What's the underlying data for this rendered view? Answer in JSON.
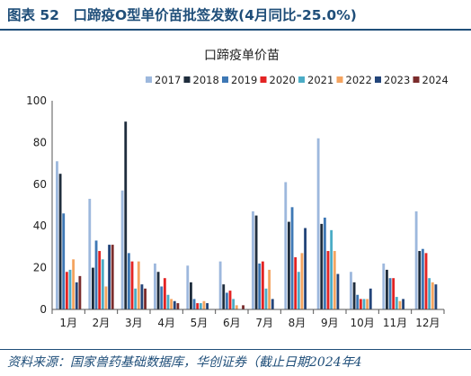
{
  "figure": {
    "title": "图表 52　口蹄疫O型单价苗批签发数(4月同比-25.0%)",
    "source": "资料来源：国家兽药基础数据库，华创证券（截止日期2024年4"
  },
  "chart_data": {
    "type": "bar",
    "title": "口蹄疫单价苗",
    "xlabel": "",
    "ylabel": "",
    "ylim": [
      0,
      100
    ],
    "yticks": [
      0,
      20,
      40,
      60,
      80,
      100
    ],
    "grid": false,
    "legend_position": "top",
    "categories": [
      "1月",
      "2月",
      "3月",
      "4月",
      "5月",
      "6月",
      "7月",
      "8月",
      "9月",
      "10月",
      "11月",
      "12月"
    ],
    "series": [
      {
        "name": "2017",
        "color": "#9db8dd",
        "values": [
          71,
          53,
          57,
          22,
          21,
          23,
          47,
          61,
          82,
          18,
          22,
          47
        ]
      },
      {
        "name": "2018",
        "color": "#1f2d3d",
        "values": [
          65,
          20,
          90,
          18,
          13,
          12,
          45,
          42,
          41,
          13,
          19,
          28
        ]
      },
      {
        "name": "2019",
        "color": "#3e78b5",
        "values": [
          46,
          33,
          27,
          11,
          5,
          8,
          22,
          49,
          44,
          7,
          15,
          29
        ]
      },
      {
        "name": "2020",
        "color": "#e32323",
        "values": [
          18,
          28,
          23,
          15,
          3,
          9,
          23,
          25,
          28,
          5,
          15,
          27
        ]
      },
      {
        "name": "2021",
        "color": "#4bacc6",
        "values": [
          19,
          24,
          10,
          7,
          3,
          5,
          10,
          18,
          38,
          5,
          6,
          15
        ]
      },
      {
        "name": "2022",
        "color": "#f4a460",
        "values": [
          24,
          11,
          23,
          5,
          4,
          2,
          19,
          27,
          28,
          5,
          4,
          13
        ]
      },
      {
        "name": "2023",
        "color": "#23457a",
        "values": [
          13,
          31,
          12,
          4,
          3,
          0,
          5,
          39,
          17,
          10,
          5,
          12
        ]
      },
      {
        "name": "2024",
        "color": "#7b2c2c",
        "values": [
          16,
          31,
          10,
          3,
          0,
          2,
          0,
          0,
          0,
          0,
          0,
          0
        ]
      }
    ]
  }
}
